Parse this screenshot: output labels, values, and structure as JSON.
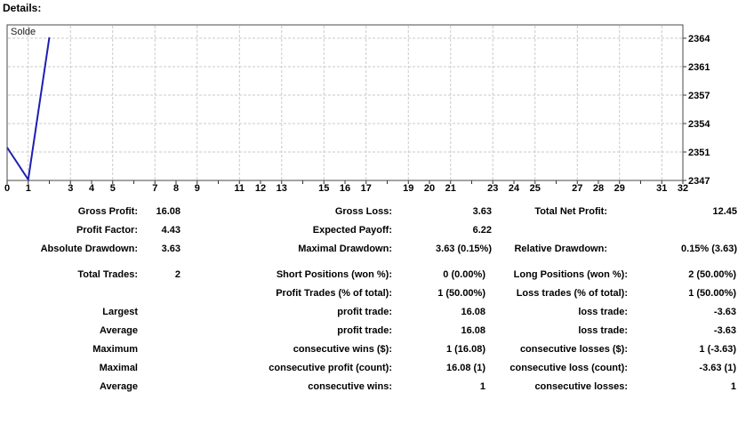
{
  "header": {
    "title": "Details:"
  },
  "colors": {
    "line": "#1e1eb4",
    "grid": "#c9c9c9",
    "border": "#4a4a4a",
    "text": "#000000"
  },
  "chart_data": {
    "type": "line",
    "title": "Solde",
    "xlabel": "",
    "ylabel": "",
    "xlim": [
      0,
      32
    ],
    "grid": "dashed",
    "legend_position": "top-left",
    "x_labels_shown": [
      0,
      1,
      3,
      4,
      5,
      7,
      8,
      9,
      11,
      12,
      13,
      15,
      16,
      17,
      19,
      20,
      21,
      23,
      24,
      25,
      27,
      28,
      29,
      31,
      32
    ],
    "y_tick_labels": [
      "2364",
      "2361",
      "2357",
      "2354",
      "2351",
      "2347"
    ],
    "series": [
      {
        "name": "Solde",
        "x": [
          0,
          1,
          2
        ],
        "values": [
          2350.63,
          2347.0,
          2363.08
        ]
      }
    ]
  },
  "stats": {
    "summary_rows": [
      {
        "l1": "Gross Profit:",
        "v1": "16.08",
        "l2": "Gross Loss:",
        "v2": "3.63",
        "l3": "Total Net Profit:",
        "v3": "12.45"
      },
      {
        "l1": "Profit Factor:",
        "v1": "4.43",
        "l2": "Expected Payoff:",
        "v2": "6.22",
        "l3": "",
        "v3": ""
      },
      {
        "l1": "Absolute Drawdown:",
        "v1": "3.63",
        "l2": "Maximal Drawdown:",
        "v2": "3.63 (0.15%)",
        "l3": "Relative Drawdown:",
        "v3": "0.15% (3.63)"
      }
    ],
    "trade_rows": [
      {
        "l1": "Total Trades:",
        "v1": "2",
        "l2": "Short Positions (won %):",
        "v2": "0 (0.00%)",
        "l3": "Long Positions (won %):",
        "v3": "2 (50.00%)"
      },
      {
        "l1": "",
        "v1": "",
        "l2": "Profit Trades (% of total):",
        "v2": "1 (50.00%)",
        "l3": "Loss trades (% of total):",
        "v3": "1 (50.00%)"
      },
      {
        "l1": "Largest",
        "v1": "",
        "l2": "profit trade:",
        "v2": "16.08",
        "l3": "loss trade:",
        "v3": "-3.63"
      },
      {
        "l1": "Average",
        "v1": "",
        "l2": "profit trade:",
        "v2": "16.08",
        "l3": "loss trade:",
        "v3": "-3.63"
      },
      {
        "l1": "Maximum",
        "v1": "",
        "l2": "consecutive wins ($):",
        "v2": "1 (16.08)",
        "l3": "consecutive losses ($):",
        "v3": "1 (-3.63)"
      },
      {
        "l1": "Maximal",
        "v1": "",
        "l2": "consecutive profit (count):",
        "v2": "16.08 (1)",
        "l3": "consecutive loss (count):",
        "v3": "-3.63 (1)"
      },
      {
        "l1": "Average",
        "v1": "",
        "l2": "consecutive wins:",
        "v2": "1",
        "l3": "consecutive losses:",
        "v3": "1"
      }
    ]
  }
}
